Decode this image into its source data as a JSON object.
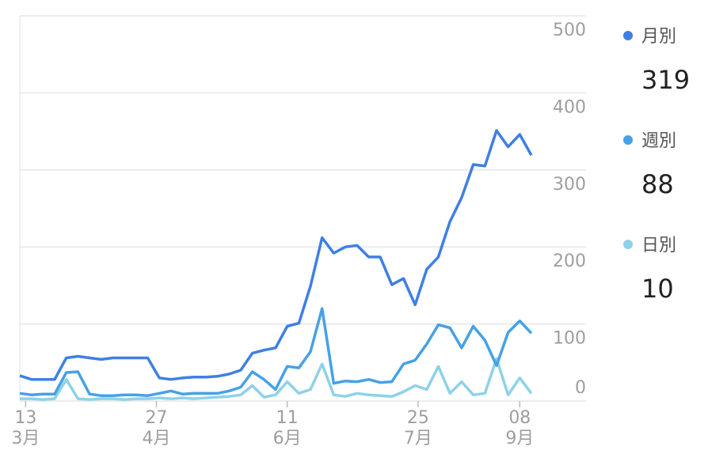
{
  "chart_data": {
    "type": "line",
    "x": [
      0,
      4,
      8,
      12,
      16,
      20,
      24,
      28,
      32,
      36,
      40,
      44,
      48,
      52,
      56,
      60,
      64,
      68,
      72,
      76,
      80,
      84,
      88,
      92,
      96,
      100,
      104,
      108,
      112,
      116,
      120,
      124,
      128,
      132,
      136,
      140,
      144,
      148,
      152,
      156,
      160,
      164,
      168,
      172,
      176
    ],
    "xlim": [
      0,
      176
    ],
    "xticks": [
      {
        "value": 2,
        "label": "13",
        "sublabel": "3月"
      },
      {
        "value": 47,
        "label": "27",
        "sublabel": "4月"
      },
      {
        "value": 92,
        "label": "11",
        "sublabel": "6月"
      },
      {
        "value": 137,
        "label": "25",
        "sublabel": "7月"
      },
      {
        "value": 172,
        "label": "08",
        "sublabel": "9月"
      }
    ],
    "ylim": [
      0,
      500
    ],
    "yticks": [
      0,
      100,
      200,
      300,
      400,
      500
    ],
    "grid": true,
    "series": [
      {
        "name": "月別",
        "color": "#3f7fe3",
        "legend_value": "319",
        "values": [
          33,
          28,
          28,
          28,
          56,
          58,
          56,
          54,
          56,
          56,
          56,
          56,
          30,
          28,
          30,
          31,
          31,
          32,
          35,
          40,
          62,
          66,
          69,
          97,
          101,
          149,
          212,
          192,
          200,
          202,
          187,
          187,
          151,
          159,
          125,
          171,
          187,
          233,
          264,
          307,
          305,
          351,
          330,
          346,
          319
        ]
      },
      {
        "name": "週別",
        "color": "#46a1e6",
        "legend_value": "88",
        "values": [
          10,
          8,
          9,
          9,
          37,
          38,
          9,
          7,
          7,
          8,
          8,
          7,
          10,
          13,
          9,
          10,
          10,
          10,
          13,
          18,
          38,
          28,
          15,
          45,
          43,
          64,
          120,
          23,
          26,
          25,
          28,
          24,
          25,
          48,
          53,
          74,
          99,
          95,
          69,
          97,
          79,
          46,
          89,
          104,
          88
        ]
      },
      {
        "name": "日別",
        "color": "#8ed2e8",
        "legend_value": "10",
        "values": [
          3,
          3,
          2,
          3,
          28,
          3,
          2,
          3,
          3,
          2,
          3,
          3,
          4,
          3,
          4,
          3,
          4,
          5,
          6,
          8,
          20,
          5,
          8,
          25,
          10,
          15,
          48,
          8,
          6,
          10,
          8,
          7,
          6,
          12,
          20,
          15,
          45,
          10,
          25,
          8,
          10,
          55,
          8,
          30,
          10
        ]
      }
    ]
  }
}
